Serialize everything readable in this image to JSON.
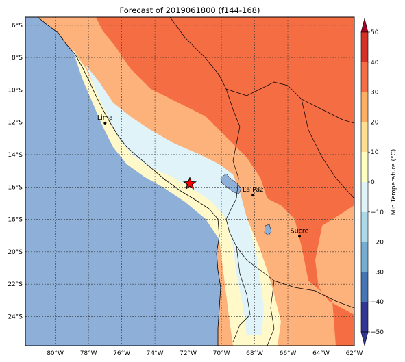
{
  "title": "Forecast of 2019061800 (f144-168)",
  "map": {
    "lat_labels": [
      "6°S",
      "8°S",
      "10°S",
      "12°S",
      "14°S",
      "16°S",
      "18°S",
      "20°S",
      "22°S",
      "24°S"
    ],
    "lon_labels": [
      "80°W",
      "78°W",
      "76°W",
      "74°W",
      "72°W",
      "70°W",
      "68°W",
      "66°W",
      "64°W",
      "62°W"
    ],
    "lat_range": [
      -25.8,
      -5.5
    ],
    "lon_range": [
      -81.8,
      -62
    ],
    "cities": [
      {
        "name": "Lima",
        "lon": -77.0,
        "lat": -12.05
      },
      {
        "name": "La Paz",
        "lon": -68.1,
        "lat": -16.5
      },
      {
        "name": "Sucre",
        "lon": -65.3,
        "lat": -19.05
      }
    ],
    "marker": {
      "name": "star",
      "lon": -71.9,
      "lat": -15.8,
      "color": "#ff0000"
    }
  },
  "colorbar": {
    "label": "Min Temperature (°C)",
    "tick_labels": [
      "50",
      "40",
      "30",
      "20",
      "10",
      "0",
      "−10",
      "−20",
      "−30",
      "−40",
      "−50"
    ],
    "range": [
      -50,
      50
    ],
    "colors": [
      "#313695",
      "#4575b4",
      "#74add1",
      "#abd9e9",
      "#e0f3f8",
      "#ffffbf",
      "#fee090",
      "#fdae61",
      "#f46d43",
      "#d73027",
      "#a50026"
    ],
    "levels": [
      -50,
      -40,
      -30,
      -20,
      -10,
      0,
      10,
      20,
      30,
      40,
      50
    ]
  },
  "palette": {
    "ocean": "#8eb0d8",
    "cold": "#e0f3f8",
    "mild": "#fff8c8",
    "warm": "#fdb17b",
    "hot": "#f46d43",
    "lake": "#8eb0d8"
  }
}
